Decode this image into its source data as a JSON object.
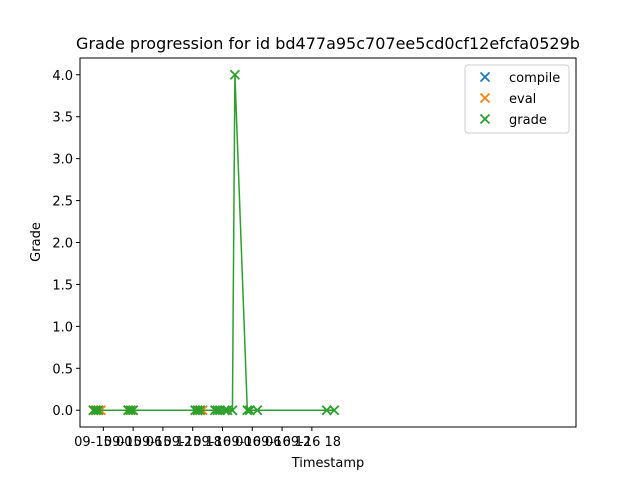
{
  "chart_data": {
    "type": "scatter",
    "title": "Grade progression for id bd477a95c707ee5cd0cf12efcfa0529b",
    "xlabel": "Timestamp",
    "ylabel": "Grade",
    "xlim": [
      -4.7,
      95.2
    ],
    "ylim": [
      -0.2,
      4.2
    ],
    "x_ticks": [
      {
        "value": 0,
        "label": "09-15 00"
      },
      {
        "value": 6,
        "label": "09-15 06"
      },
      {
        "value": 12,
        "label": "09-15 12"
      },
      {
        "value": 18,
        "label": "09-15 18"
      },
      {
        "value": 24,
        "label": "09-16 00"
      },
      {
        "value": 30,
        "label": "09-16 06"
      },
      {
        "value": 36,
        "label": "09-16 12"
      },
      {
        "value": 42,
        "label": "09-16 18"
      }
    ],
    "y_ticks": [
      0.0,
      0.5,
      1.0,
      1.5,
      2.0,
      2.5,
      3.0,
      3.5,
      4.0
    ],
    "y_tick_labels": [
      "0.0",
      "0.5",
      "1.0",
      "1.5",
      "2.0",
      "2.5",
      "3.0",
      "3.5",
      "4.0"
    ],
    "legend_position": "top-right",
    "series": [
      {
        "name": "compile",
        "color": "#1f77b4",
        "marker": "x",
        "line": false,
        "x": [
          19.0
        ],
        "y": [
          0
        ]
      },
      {
        "name": "eval",
        "color": "#ff7f0e",
        "marker": "x",
        "line": true,
        "x": [
          -2.0,
          -1.5,
          -1.0,
          -0.5,
          5.0,
          6.0,
          19.0,
          19.5,
          20.0
        ],
        "y": [
          0,
          0,
          0,
          0,
          0,
          0,
          0,
          0,
          0
        ]
      },
      {
        "name": "grade",
        "color": "#2ca02c",
        "marker": "x",
        "line": true,
        "x": [
          -2.0,
          -1.5,
          -1.0,
          5.0,
          5.5,
          6.0,
          18.5,
          19.0,
          19.5,
          22.5,
          23.0,
          23.5,
          24.5,
          25.0,
          26.0,
          26.5,
          29.0,
          29.5,
          31.0,
          45.0,
          46.5
        ],
        "y": [
          0,
          0,
          0,
          0,
          0,
          0,
          0,
          0,
          0,
          0,
          0,
          0,
          0,
          0,
          0,
          4,
          0,
          0,
          0,
          0,
          0
        ]
      }
    ]
  }
}
